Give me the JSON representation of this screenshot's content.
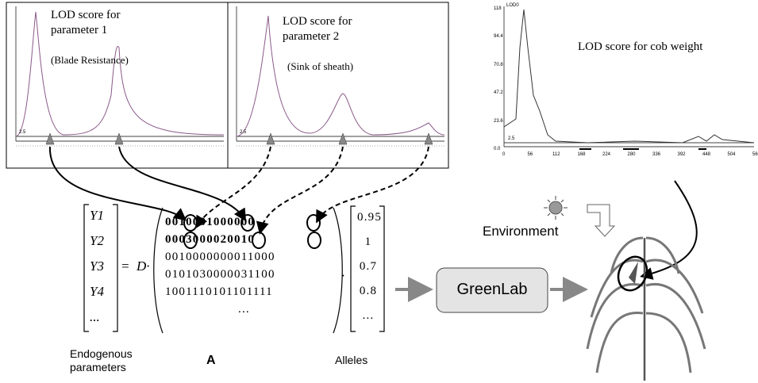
{
  "plots": [
    {
      "title": "LOD score for parameter 1",
      "subtitle": "(Blade Resistance)",
      "threshold": "2.5"
    },
    {
      "title": "LOD score for parameter 2",
      "subtitle": "(Sink of sheath)",
      "threshold": "2.5"
    },
    {
      "title": "LOD score for cob weight",
      "threshold": "2.5",
      "axis_label": "LOD0",
      "yticks": [
        "118",
        "94.4",
        "70.8",
        "47.2",
        "23.6",
        "0.0"
      ],
      "xticks": [
        "0",
        "56",
        "112",
        "168",
        "224",
        "280",
        "336",
        "392",
        "448",
        "504",
        "560"
      ]
    }
  ],
  "equation": {
    "lhs": [
      "Y1",
      "Y2",
      "Y3",
      "Y4",
      "..."
    ],
    "equals": "=",
    "operator": "D·",
    "rows": [
      "0010001000000",
      "0003000020010",
      "0010000000011000",
      "0101030000031100",
      "1001110101101111",
      "..."
    ],
    "dot": "·",
    "alleles": [
      "0.95",
      "1",
      "0.7",
      "0.8",
      "..."
    ]
  },
  "labels": {
    "endogenous": "Endogenous parameters",
    "matrix": "A",
    "alleles": "Alleles",
    "environment": "Environment",
    "model": "GreenLab"
  }
}
